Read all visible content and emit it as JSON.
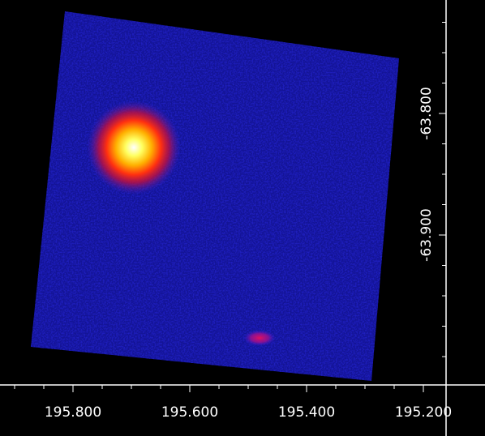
{
  "viewer": {
    "background": "#000000",
    "axis_color": "#ffffff",
    "colormap": [
      "#000000",
      "#1a10c8",
      "#2a2aff",
      "#7a20d0",
      "#d01030",
      "#ff8800",
      "#ffff40",
      "#ffffff"
    ],
    "x_axis": {
      "coordinate": "ra",
      "tick_labels": [
        "195.800",
        "195.600",
        "195.400",
        "195.200"
      ]
    },
    "y_axis": {
      "coordinate": "dec",
      "tick_labels": [
        "-63.800",
        "-63.900"
      ]
    },
    "sources": [
      {
        "name": "bright-source",
        "brightness": "saturated",
        "colors": [
          "#ffffff",
          "#ffff40",
          "#ff8800",
          "#d01030"
        ]
      },
      {
        "name": "faint-source",
        "brightness": "faint",
        "colors": [
          "#d01070",
          "#a01090"
        ]
      }
    ]
  }
}
